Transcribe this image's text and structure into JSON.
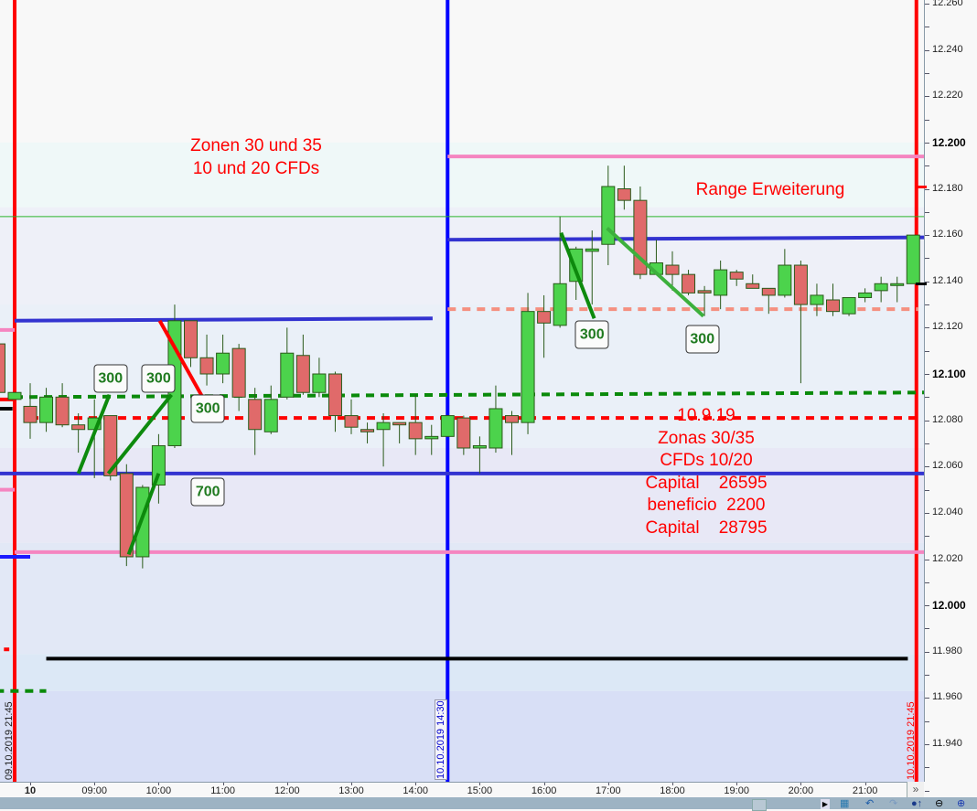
{
  "chart_data": {
    "type": "candlestick",
    "title": "",
    "interval_minutes": 15,
    "y_axis": {
      "range": [
        11.92,
        12.265
      ],
      "labels": [
        "12.260",
        "12.240",
        "12.220",
        "12.200",
        "12.180",
        "12.160",
        "12.140",
        "12.120",
        "12.100",
        "12.080",
        "12.060",
        "12.040",
        "12.020",
        "12.000",
        "11.980",
        "11.960",
        "11.940"
      ],
      "bold_labels": [
        "12.200",
        "12.100",
        "12.000"
      ],
      "position": "right"
    },
    "x_axis": {
      "labels": [
        {
          "t": "10 08:00",
          "text": "10",
          "bold": true
        },
        {
          "t": "10 09:00",
          "text": "09:00"
        },
        {
          "t": "10 10:00",
          "text": "10:00"
        },
        {
          "t": "10 11:00",
          "text": "11:00"
        },
        {
          "t": "10 12:00",
          "text": "12:00"
        },
        {
          "t": "10 13:00",
          "text": "13:00"
        },
        {
          "t": "10 14:00",
          "text": "14:00"
        },
        {
          "t": "10 15:00",
          "text": "15:00"
        },
        {
          "t": "10 16:00",
          "text": "16:00"
        },
        {
          "t": "10 17:00",
          "text": "17:00"
        },
        {
          "t": "10 18:00",
          "text": "18:00"
        },
        {
          "t": "10 19:00",
          "text": "19:00"
        },
        {
          "t": "10 20:00",
          "text": "20:00"
        },
        {
          "t": "10 21:00",
          "text": "21:00"
        }
      ]
    },
    "colors": {
      "up": "#4cd34c",
      "down": "#e06a6a",
      "wick": "#2a5a1a"
    },
    "candles": [
      {
        "t": "09 21:30",
        "o": 12.113,
        "h": 12.113,
        "l": 12.092,
        "c": 12.092
      },
      {
        "t": "09 21:45",
        "o": 12.089,
        "h": 12.092,
        "l": 12.089,
        "c": 12.092
      },
      {
        "t": "10 08:00",
        "o": 12.086,
        "h": 12.096,
        "l": 12.072,
        "c": 12.079
      },
      {
        "t": "10 08:15",
        "o": 12.079,
        "h": 12.094,
        "l": 12.075,
        "c": 12.09
      },
      {
        "t": "10 08:30",
        "o": 12.09,
        "h": 12.096,
        "l": 12.077,
        "c": 12.078
      },
      {
        "t": "10 08:45",
        "o": 12.078,
        "h": 12.083,
        "l": 12.066,
        "c": 12.076
      },
      {
        "t": "10 09:00",
        "o": 12.076,
        "h": 12.089,
        "l": 12.055,
        "c": 12.081
      },
      {
        "t": "10 09:15",
        "o": 12.082,
        "h": 12.082,
        "l": 12.054,
        "c": 12.056
      },
      {
        "t": "10 09:30",
        "o": 12.057,
        "h": 12.061,
        "l": 12.017,
        "c": 12.021
      },
      {
        "t": "10 09:45",
        "o": 12.021,
        "h": 12.052,
        "l": 12.016,
        "c": 12.051
      },
      {
        "t": "10 10:00",
        "o": 12.052,
        "h": 12.074,
        "l": 12.044,
        "c": 12.069
      },
      {
        "t": "10 10:15",
        "o": 12.069,
        "h": 12.13,
        "l": 12.068,
        "c": 12.123
      },
      {
        "t": "10 10:30",
        "o": 12.123,
        "h": 12.123,
        "l": 12.103,
        "c": 12.107
      },
      {
        "t": "10 10:45",
        "o": 12.107,
        "h": 12.117,
        "l": 12.095,
        "c": 12.1
      },
      {
        "t": "10 11:00",
        "o": 12.1,
        "h": 12.117,
        "l": 12.096,
        "c": 12.109
      },
      {
        "t": "10 11:15",
        "o": 12.111,
        "h": 12.113,
        "l": 12.084,
        "c": 12.09
      },
      {
        "t": "10 11:30",
        "o": 12.089,
        "h": 12.094,
        "l": 12.065,
        "c": 12.076
      },
      {
        "t": "10 11:45",
        "o": 12.075,
        "h": 12.095,
        "l": 12.074,
        "c": 12.089
      },
      {
        "t": "10 12:00",
        "o": 12.09,
        "h": 12.12,
        "l": 12.089,
        "c": 12.109
      },
      {
        "t": "10 12:15",
        "o": 12.108,
        "h": 12.117,
        "l": 12.091,
        "c": 12.092
      },
      {
        "t": "10 12:30",
        "o": 12.092,
        "h": 12.107,
        "l": 12.09,
        "c": 12.1
      },
      {
        "t": "10 12:45",
        "o": 12.1,
        "h": 12.101,
        "l": 12.075,
        "c": 12.082
      },
      {
        "t": "10 13:00",
        "o": 12.082,
        "h": 12.089,
        "l": 12.074,
        "c": 12.077
      },
      {
        "t": "10 13:15",
        "o": 12.076,
        "h": 12.079,
        "l": 12.07,
        "c": 12.075
      },
      {
        "t": "10 13:30",
        "o": 12.076,
        "h": 12.083,
        "l": 12.06,
        "c": 12.079
      },
      {
        "t": "10 13:45",
        "o": 12.079,
        "h": 12.079,
        "l": 12.07,
        "c": 12.078
      },
      {
        "t": "10 14:00",
        "o": 12.079,
        "h": 12.091,
        "l": 12.065,
        "c": 12.072
      },
      {
        "t": "10 14:15",
        "o": 12.072,
        "h": 12.078,
        "l": 12.065,
        "c": 12.073
      },
      {
        "t": "10 14:30",
        "o": 12.073,
        "h": 12.082,
        "l": 12.073,
        "c": 12.082
      },
      {
        "t": "10 14:45",
        "o": 12.081,
        "h": 12.082,
        "l": 12.065,
        "c": 12.068
      },
      {
        "t": "10 15:00",
        "o": 12.068,
        "h": 12.073,
        "l": 12.057,
        "c": 12.069
      },
      {
        "t": "10 15:15",
        "o": 12.068,
        "h": 12.095,
        "l": 12.066,
        "c": 12.085
      },
      {
        "t": "10 15:30",
        "o": 12.082,
        "h": 12.084,
        "l": 12.065,
        "c": 12.079
      },
      {
        "t": "10 15:45",
        "o": 12.079,
        "h": 12.135,
        "l": 12.074,
        "c": 12.127
      },
      {
        "t": "10 16:00",
        "o": 12.127,
        "h": 12.134,
        "l": 12.107,
        "c": 12.122
      },
      {
        "t": "10 16:15",
        "o": 12.121,
        "h": 12.168,
        "l": 12.12,
        "c": 12.139
      },
      {
        "t": "10 16:30",
        "o": 12.14,
        "h": 12.155,
        "l": 12.132,
        "c": 12.154
      },
      {
        "t": "10 16:45",
        "o": 12.153,
        "h": 12.162,
        "l": 12.13,
        "c": 12.154
      },
      {
        "t": "10 17:00",
        "o": 12.156,
        "h": 12.19,
        "l": 12.147,
        "c": 12.181
      },
      {
        "t": "10 17:15",
        "o": 12.18,
        "h": 12.19,
        "l": 12.171,
        "c": 12.175
      },
      {
        "t": "10 17:30",
        "o": 12.175,
        "h": 12.181,
        "l": 12.141,
        "c": 12.143
      },
      {
        "t": "10 17:45",
        "o": 12.143,
        "h": 12.158,
        "l": 12.143,
        "c": 12.148
      },
      {
        "t": "10 18:00",
        "o": 12.147,
        "h": 12.153,
        "l": 12.136,
        "c": 12.143
      },
      {
        "t": "10 18:15",
        "o": 12.143,
        "h": 12.145,
        "l": 12.134,
        "c": 12.135
      },
      {
        "t": "10 18:30",
        "o": 12.136,
        "h": 12.138,
        "l": 12.125,
        "c": 12.135
      },
      {
        "t": "10 18:45",
        "o": 12.134,
        "h": 12.149,
        "l": 12.128,
        "c": 12.145
      },
      {
        "t": "10 19:00",
        "o": 12.144,
        "h": 12.145,
        "l": 12.138,
        "c": 12.141
      },
      {
        "t": "10 19:15",
        "o": 12.139,
        "h": 12.143,
        "l": 12.137,
        "c": 12.137
      },
      {
        "t": "10 19:30",
        "o": 12.137,
        "h": 12.137,
        "l": 12.126,
        "c": 12.134
      },
      {
        "t": "10 19:45",
        "o": 12.134,
        "h": 12.154,
        "l": 12.133,
        "c": 12.147
      },
      {
        "t": "10 20:00",
        "o": 12.147,
        "h": 12.149,
        "l": 12.096,
        "c": 12.13
      },
      {
        "t": "10 20:15",
        "o": 12.13,
        "h": 12.139,
        "l": 12.125,
        "c": 12.134
      },
      {
        "t": "10 20:30",
        "o": 12.132,
        "h": 12.139,
        "l": 12.125,
        "c": 12.127
      },
      {
        "t": "10 20:45",
        "o": 12.126,
        "h": 12.133,
        "l": 12.125,
        "c": 12.133
      },
      {
        "t": "10 21:00",
        "o": 12.133,
        "h": 12.137,
        "l": 12.131,
        "c": 12.135
      },
      {
        "t": "10 21:15",
        "o": 12.136,
        "h": 12.142,
        "l": 12.131,
        "c": 12.139
      },
      {
        "t": "10 21:30",
        "o": 12.139,
        "h": 12.142,
        "l": 12.131,
        "c": 12.139
      },
      {
        "t": "10 21:45",
        "o": 12.139,
        "h": 12.16,
        "l": 12.139,
        "c": 12.16
      }
    ],
    "zones": [
      {
        "from": 12.265,
        "to": 12.2,
        "color": "#f8f8f8"
      },
      {
        "from": 12.2,
        "to": 12.172,
        "color": "#eff8f8"
      },
      {
        "from": 12.172,
        "to": 12.13,
        "color": "#eef0f8"
      },
      {
        "from": 12.13,
        "to": 12.068,
        "color": "#eaf0f8"
      },
      {
        "from": 12.068,
        "to": 12.027,
        "color": "#e8e8f6"
      },
      {
        "from": 12.027,
        "to": 11.979,
        "color": "#e2e8f6"
      },
      {
        "from": 11.979,
        "to": 11.963,
        "color": "#dce8f6"
      },
      {
        "from": 11.963,
        "to": 11.9,
        "color": "#d8dff6"
      }
    ],
    "hlines": [
      {
        "name": "zone-top-pink-line",
        "t1": "10 14:30",
        "t2": "10 22:00",
        "p1": 12.194,
        "p2": 12.194,
        "color": "#f585c0",
        "width": 4,
        "dash": ""
      },
      {
        "name": "thin-green-line",
        "t1": "09 21:00",
        "t2": "10 22:00",
        "p1": 12.168,
        "p2": 12.168,
        "color": "#2bb52b",
        "width": 1,
        "dash": ""
      },
      {
        "name": "upper-blue-line-right",
        "t1": "10 14:30",
        "t2": "10 22:00",
        "p1": 12.158,
        "p2": 12.159,
        "color": "#3333d0",
        "width": 4,
        "dash": ""
      },
      {
        "name": "salmon-dashed-line",
        "t1": "10 14:30",
        "t2": "10 21:50",
        "p1": 12.128,
        "p2": 12.128,
        "color": "#f59080",
        "width": 4,
        "dash": "9,7"
      },
      {
        "name": "upper-blue-line-left",
        "t1": "09 21:45",
        "t2": "10 14:16",
        "p1": 12.123,
        "p2": 12.124,
        "color": "#3333d0",
        "width": 4,
        "dash": ""
      },
      {
        "name": "pink-short-left-upper",
        "t1": "09 21:00",
        "t2": "09 21:45",
        "p1": 12.119,
        "p2": 12.119,
        "color": "#f585c0",
        "width": 4,
        "dash": ""
      },
      {
        "name": "green-dashed-line",
        "t1": "09 21:45",
        "t2": "10 22:00",
        "p1": 12.09,
        "p2": 12.092,
        "color": "#0a8a0a",
        "width": 4,
        "dash": "9,7"
      },
      {
        "name": "red-short-left",
        "t1": "09 21:00",
        "t2": "09 21:45",
        "p1": 12.089,
        "p2": 12.089,
        "color": "#ff0000",
        "width": 4,
        "dash": ""
      },
      {
        "name": "black-short-left",
        "t1": "09 21:00",
        "t2": "09 21:43",
        "p1": 12.085,
        "p2": 12.085,
        "color": "#000000",
        "width": 4,
        "dash": ""
      },
      {
        "name": "red-dashed-line",
        "t1": "10 08:00",
        "t2": "10 21:50",
        "p1": 12.081,
        "p2": 12.081,
        "color": "#ff0000",
        "width": 4,
        "dash": "9,7"
      },
      {
        "name": "lower-blue-line",
        "t1": "09 21:00",
        "t2": "10 22:00",
        "p1": 12.057,
        "p2": 12.057,
        "color": "#3333d0",
        "width": 4,
        "dash": ""
      },
      {
        "name": "pink-short-left-lower",
        "t1": "09 21:00",
        "t2": "09 21:45",
        "p1": 12.05,
        "p2": 12.05,
        "color": "#f585c0",
        "width": 4,
        "dash": ""
      },
      {
        "name": "lower-pink-line",
        "t1": "09 21:45",
        "t2": "10 22:00",
        "p1": 12.023,
        "p2": 12.023,
        "color": "#f585c0",
        "width": 4,
        "dash": ""
      },
      {
        "name": "blue-short-left",
        "t1": "09 21:00",
        "t2": "10 08:00",
        "p1": 12.021,
        "p2": 12.021,
        "color": "#1a1aff",
        "width": 4,
        "dash": ""
      },
      {
        "name": "red-tick-left",
        "t1": "09 21:35",
        "t2": "09 21:40",
        "p1": 11.981,
        "p2": 11.981,
        "color": "#ff0000",
        "width": 4,
        "dash": ""
      },
      {
        "name": "black-line",
        "t1": "10 08:15",
        "t2": "10 21:40",
        "p1": 11.977,
        "p2": 11.977,
        "color": "#000000",
        "width": 4,
        "dash": ""
      },
      {
        "name": "green-dashed-short-left",
        "t1": "09 21:00",
        "t2": "10 08:15",
        "p1": 11.963,
        "p2": 11.963,
        "color": "#0a8a0a",
        "width": 4,
        "dash": "9,7"
      }
    ],
    "trendlines": [
      {
        "t1": "10 08:45",
        "p1": 12.057,
        "t2": "10 09:14",
        "p2": 12.091,
        "color": "#0d8a0d"
      },
      {
        "t1": "10 09:13",
        "p1": 12.057,
        "t2": "10 10:12",
        "p2": 12.091,
        "color": "#0d8a0d"
      },
      {
        "t1": "10 09:32",
        "p1": 12.022,
        "t2": "10 10:00",
        "p2": 12.057,
        "color": "#0d8a0d"
      },
      {
        "t1": "10 10:01",
        "p1": 12.123,
        "t2": "10 10:41",
        "p2": 12.09,
        "color": "#ff0000"
      },
      {
        "t1": "10 16:16",
        "p1": 12.161,
        "t2": "10 16:47",
        "p2": 12.124,
        "color": "#0d8a0d"
      },
      {
        "t1": "10 16:59",
        "p1": 12.163,
        "t2": "10 18:29",
        "p2": 12.125,
        "color": "#3cb03c"
      }
    ],
    "vlines": [
      {
        "t": "09 21:45",
        "color": "#ff0000",
        "label": "09.10.2019 21:45",
        "label_color": "#222222"
      },
      {
        "t": "10 14:30",
        "color": "#0000ff",
        "label": "10.10.2019 14:30",
        "label_color": "#0000cc"
      },
      {
        "t": "10 21:48",
        "color": "#ff0000",
        "label": "10.10.2019 21:45",
        "label_color": "#ff0000"
      }
    ],
    "price_labels": [
      {
        "t": "10 09:15",
        "p": 12.098,
        "text": "300"
      },
      {
        "t": "10 10:00",
        "p": 12.098,
        "text": "300"
      },
      {
        "t": "10 10:46",
        "p": 12.085,
        "text": "300"
      },
      {
        "t": "10 10:46",
        "p": 12.049,
        "text": "700"
      },
      {
        "t": "10 16:45",
        "p": 12.117,
        "text": "300"
      },
      {
        "t": "10 18:28",
        "p": 12.115,
        "text": "300"
      }
    ],
    "axis_markers": [
      {
        "p": 12.181,
        "color": "#ff0000"
      },
      {
        "p": 12.139,
        "color": "#000000"
      }
    ]
  },
  "annotations": {
    "zonen": "Zonen 30 und 35\n10 und 20 CFDs",
    "range": "Range Erweiterung",
    "summary": "10.9.19\nZonas 30/35\nCFDs 10/20\nCapital    26595\nbeneficio  2200\nCapital    28795"
  },
  "toolbar": {
    "more_label": "»",
    "icons": [
      "calendar-icon",
      "undo-icon",
      "redo-icon",
      "pin-icon",
      "zoom-out-icon",
      "zoom-in-icon"
    ]
  }
}
